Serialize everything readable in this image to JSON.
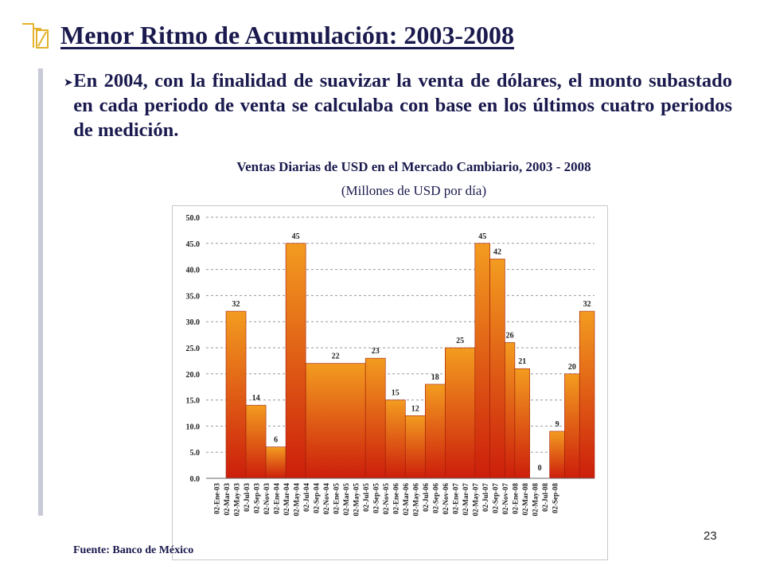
{
  "slide": {
    "title": "Menor Ritmo de Acumulación: 2003-2008",
    "bullet": "En 2004, con la finalidad de suavizar la venta de dólares, el monto subastado en cada periodo de venta se calculaba con base en los últimos cuatro periodos de medición.",
    "source": "Fuente: Banco de México",
    "page_number": "23",
    "accent_color": "#1a1a4e",
    "icon": "pencil-logo-icon"
  },
  "chart_data": {
    "type": "bar",
    "title": "Ventas Diarias de USD en el Mercado Cambiario, 2003 - 2008",
    "subtitle": "(Millones de USD por día)",
    "categories": [
      "02-Ene-03",
      "02-Mar-03",
      "02-May-03",
      "02-Jul-03",
      "02-Sep-03",
      "02-Nov-03",
      "02-Ene-04",
      "02-Mar-04",
      "02-May-04",
      "02-Jul-04",
      "02-Sep-04",
      "02-Nov-04",
      "02-Ene-05",
      "02-Mar-05",
      "02-May-05",
      "02-Jul-05",
      "02-Sep-05",
      "02-Nov-05",
      "02-Ene-06",
      "02-Mar-06",
      "02-May-06",
      "02-Jul-06",
      "02-Sep-06",
      "02-Nov-06",
      "02-Ene-07",
      "02-Mar-07",
      "02-May-07",
      "02-Jul-07",
      "02-Sep-07",
      "02-Nov-07",
      "02-Ene-08",
      "02-Mar-08",
      "02-May-08",
      "02-Jul-08",
      "02-Sep-08"
    ],
    "periods": [
      {
        "start": 2,
        "end": 4,
        "value": 32,
        "label": "32"
      },
      {
        "start": 4,
        "end": 6,
        "value": 14,
        "label": "14"
      },
      {
        "start": 6,
        "end": 8,
        "value": 6,
        "label": "6"
      },
      {
        "start": 8,
        "end": 10,
        "value": 45,
        "label": "45"
      },
      {
        "start": 10,
        "end": 16,
        "value": 22,
        "label": "22"
      },
      {
        "start": 16,
        "end": 18,
        "value": 23,
        "label": "23"
      },
      {
        "start": 18,
        "end": 20,
        "value": 15,
        "label": "15"
      },
      {
        "start": 20,
        "end": 22,
        "value": 12,
        "label": "12"
      },
      {
        "start": 22,
        "end": 24,
        "value": 18,
        "label": "18"
      },
      {
        "start": 24,
        "end": 27,
        "value": 25,
        "label": "25"
      },
      {
        "start": 27,
        "end": 28.5,
        "value": 45,
        "label": "45"
      },
      {
        "start": 28.5,
        "end": 30,
        "value": 42,
        "label": "42"
      },
      {
        "start": 30,
        "end": 31,
        "value": 26,
        "label": "26"
      },
      {
        "start": 31,
        "end": 32.5,
        "value": 21,
        "label": "21"
      },
      {
        "start": 32.5,
        "end": 34.5,
        "value": 0,
        "label": "0"
      },
      {
        "start": 34.5,
        "end": 36,
        "value": 9,
        "label": "9"
      },
      {
        "start": 36,
        "end": 37.5,
        "value": 20,
        "label": "20"
      },
      {
        "start": 37.5,
        "end": 39,
        "value": 32,
        "label": "32"
      }
    ],
    "slot_count": 39,
    "y_ticks": [
      "0.0",
      "5.0",
      "10.0",
      "15.0",
      "20.0",
      "25.0",
      "30.0",
      "35.0",
      "40.0",
      "45.0",
      "50.0"
    ],
    "ylim": [
      0,
      50
    ],
    "grid": true,
    "gradient_colors": [
      "#f39c20",
      "#cc1e0b"
    ]
  }
}
